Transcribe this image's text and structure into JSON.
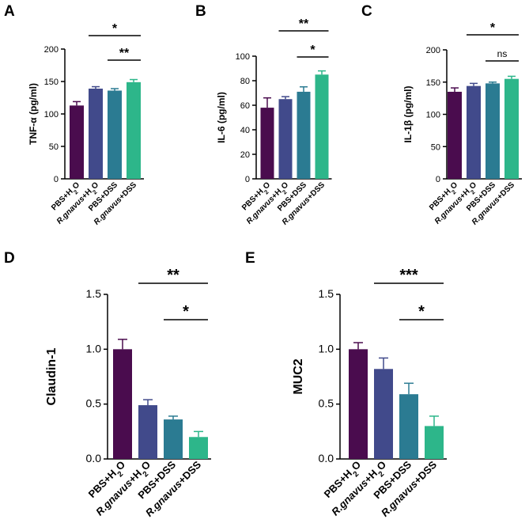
{
  "chart_data": [
    {
      "panel": "A",
      "type": "bar",
      "ylabel": "TNF-α (pg/ml)",
      "ylim": [
        0,
        200
      ],
      "yticks": [
        0,
        50,
        100,
        150,
        200
      ],
      "categories": [
        "PBS+H₂O",
        "R.gnavus+H₂O",
        "PBS+DSS",
        "R.gnavus+DSS"
      ],
      "values": [
        113,
        139,
        136,
        149
      ],
      "errors": [
        6,
        3,
        3,
        4
      ],
      "colors": [
        "#4a0c4e",
        "#414a8b",
        "#2b7b92",
        "#2db68a"
      ],
      "significance": [
        {
          "from": 1,
          "to": 3,
          "label": "*"
        },
        {
          "from": 2,
          "to": 3,
          "label": "**"
        }
      ]
    },
    {
      "panel": "B",
      "type": "bar",
      "ylabel": "IL-6 (pg/ml)",
      "ylim": [
        0,
        100
      ],
      "yticks": [
        0,
        20,
        40,
        60,
        80,
        100
      ],
      "categories": [
        "PBS+H₂O",
        "R.gnavus+H₂O",
        "PBS+DSS",
        "R.gnavus+DSS"
      ],
      "values": [
        58,
        65,
        71,
        85
      ],
      "errors": [
        8,
        2,
        4,
        3
      ],
      "colors": [
        "#4a0c4e",
        "#414a8b",
        "#2b7b92",
        "#2db68a"
      ],
      "significance": [
        {
          "from": 1,
          "to": 3,
          "label": "**"
        },
        {
          "from": 2,
          "to": 3,
          "label": "*"
        }
      ]
    },
    {
      "panel": "C",
      "type": "bar",
      "ylabel": "IL-1β (pg/ml)",
      "ylim": [
        0,
        200
      ],
      "yticks": [
        0,
        50,
        100,
        150,
        200
      ],
      "categories": [
        "PBS+H₂O",
        "R.gnavus+H₂O",
        "PBS+DSS",
        "R.gnavus+DSS"
      ],
      "values": [
        135,
        144,
        148,
        155
      ],
      "errors": [
        6,
        4,
        2,
        4
      ],
      "colors": [
        "#4a0c4e",
        "#414a8b",
        "#2b7b92",
        "#2db68a"
      ],
      "significance": [
        {
          "from": 1,
          "to": 3,
          "label": "*"
        },
        {
          "from": 2,
          "to": 3,
          "label": "ns"
        }
      ]
    },
    {
      "panel": "D",
      "type": "bar",
      "ylabel": "Claudin-1",
      "ylim": [
        0,
        1.5
      ],
      "yticks": [
        0.0,
        0.5,
        1.0,
        1.5
      ],
      "categories": [
        "PBS+H₂O",
        "R.gnavus+H₂O",
        "PBS+DSS",
        "R.gnavus+DSS"
      ],
      "values": [
        1.0,
        0.49,
        0.36,
        0.2
      ],
      "errors": [
        0.09,
        0.05,
        0.03,
        0.05
      ],
      "colors": [
        "#4a0c4e",
        "#414a8b",
        "#2b7b92",
        "#2db68a"
      ],
      "significance": [
        {
          "from": 1,
          "to": 3,
          "label": "**"
        },
        {
          "from": 2,
          "to": 3,
          "label": "*"
        }
      ]
    },
    {
      "panel": "E",
      "type": "bar",
      "ylabel": "MUC2",
      "ylim": [
        0,
        1.5
      ],
      "yticks": [
        0.0,
        0.5,
        1.0,
        1.5
      ],
      "categories": [
        "PBS+H₂O",
        "R.gnavus+H₂O",
        "PBS+DSS",
        "R.gnavus+DSS"
      ],
      "values": [
        1.0,
        0.82,
        0.59,
        0.3
      ],
      "errors": [
        0.06,
        0.1,
        0.1,
        0.09
      ],
      "colors": [
        "#4a0c4e",
        "#414a8b",
        "#2b7b92",
        "#2db68a"
      ],
      "significance": [
        {
          "from": 1,
          "to": 3,
          "label": "***"
        },
        {
          "from": 2,
          "to": 3,
          "label": "*"
        }
      ]
    }
  ]
}
